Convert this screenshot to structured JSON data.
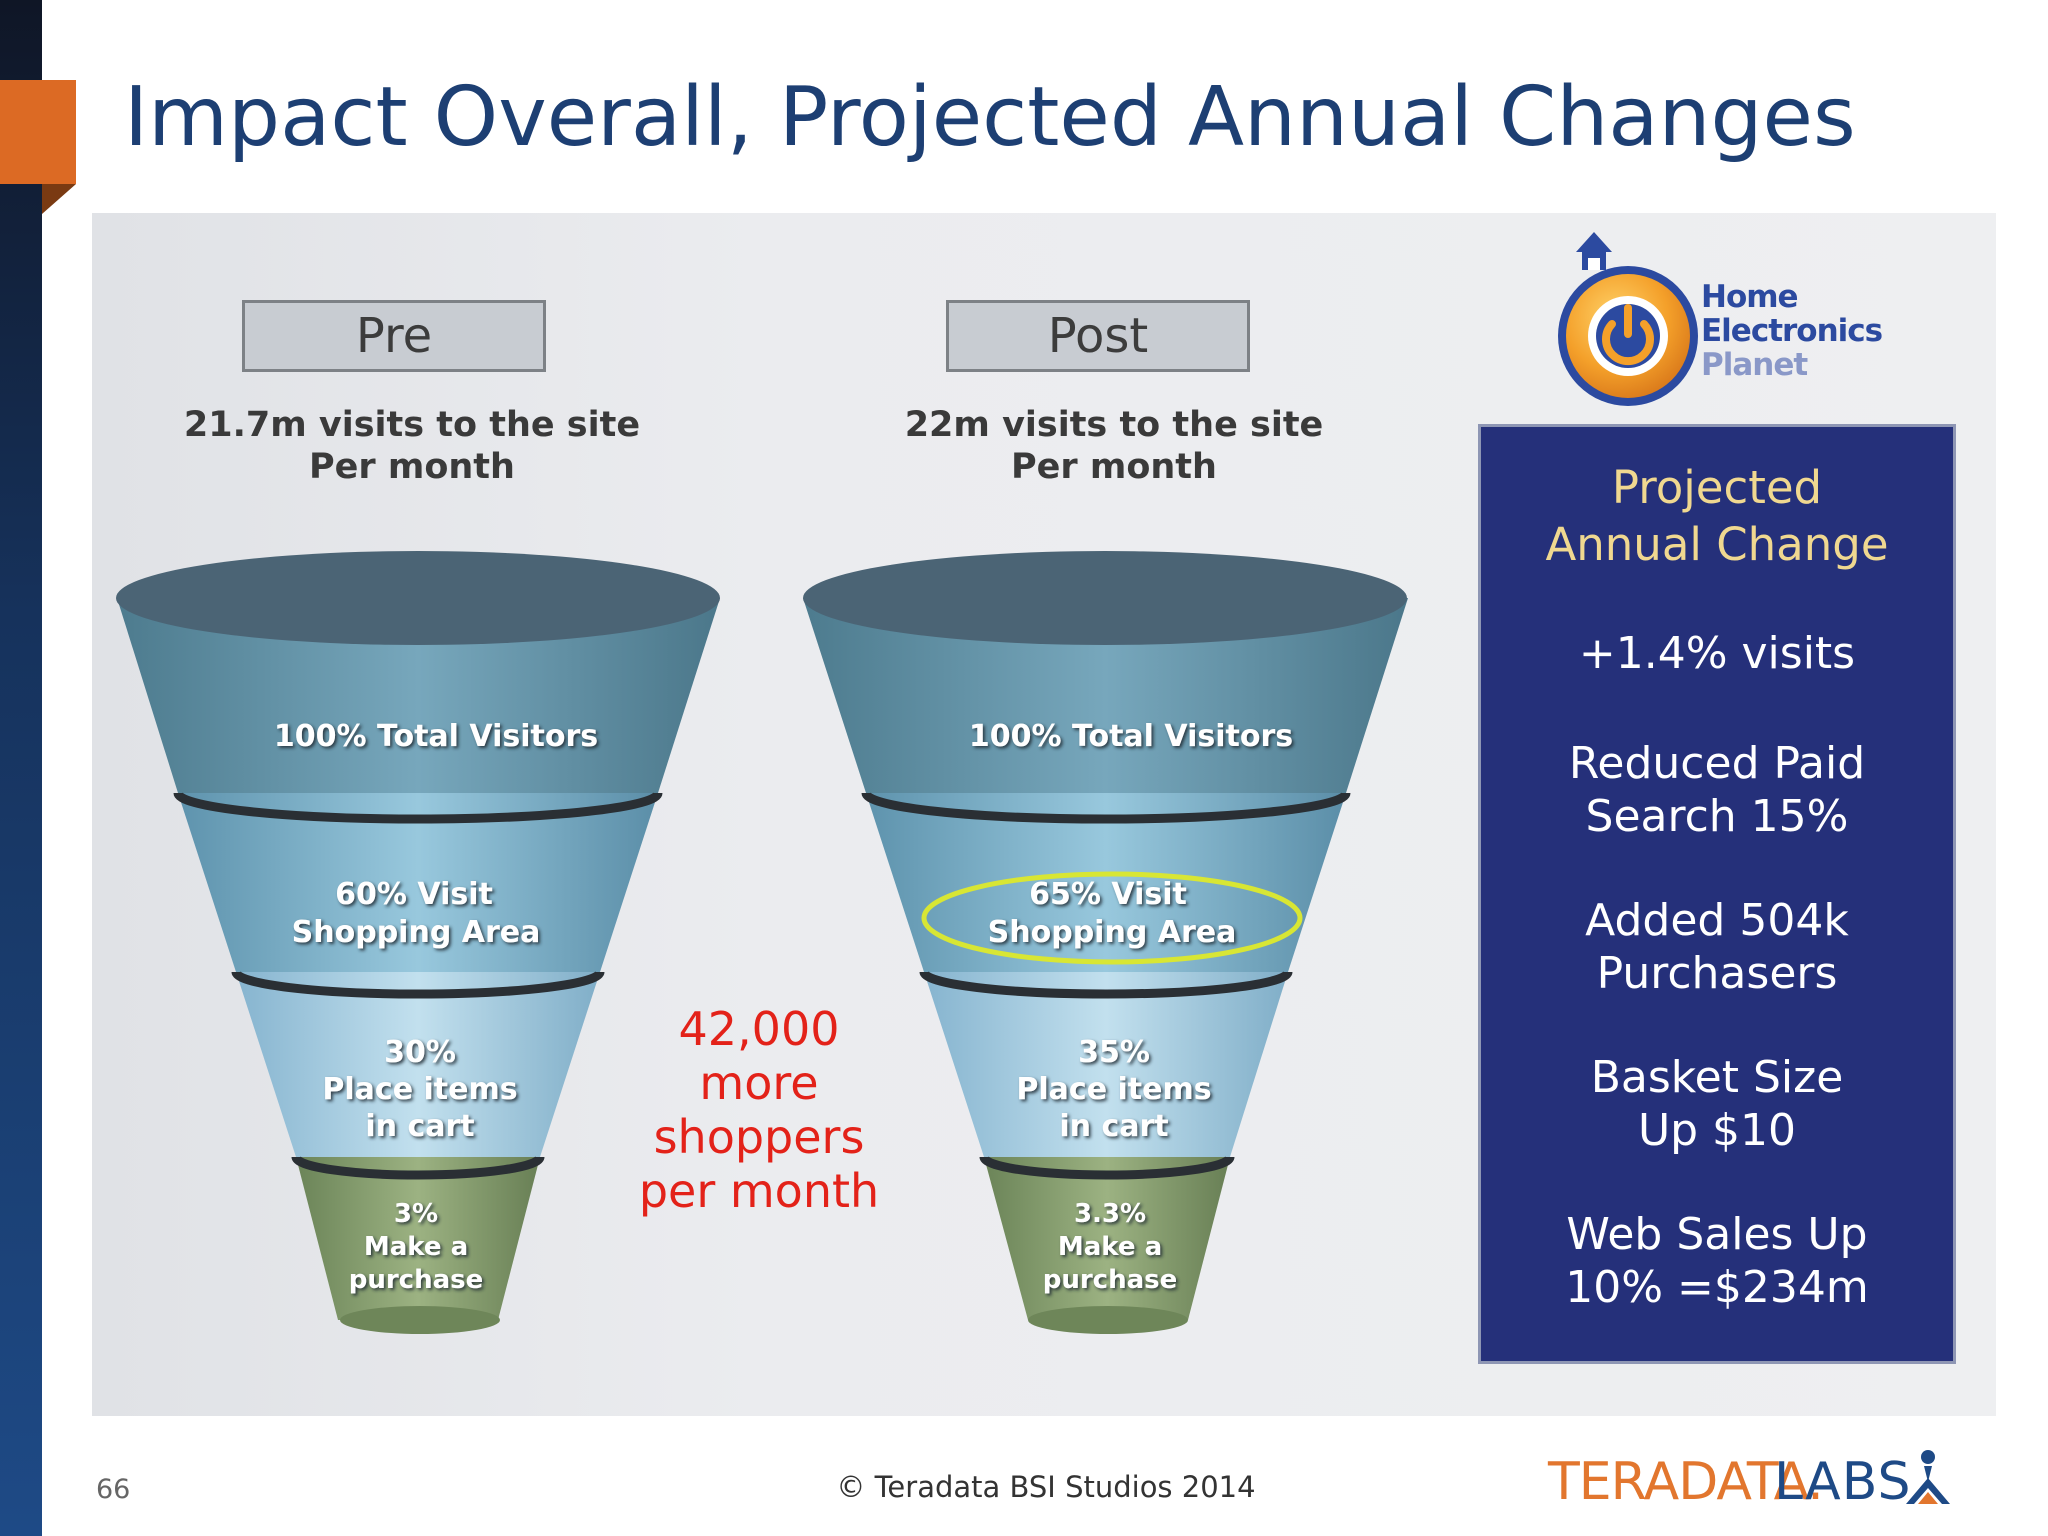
{
  "slide": {
    "title": "Impact Overall, Projected Annual Changes",
    "page_number": "66",
    "copyright": "© Teradata BSI Studios 2014"
  },
  "pre": {
    "label": "Pre",
    "visits_line1": "21.7m visits to the site",
    "visits_line2": "Per month",
    "stage1": "100% Total Visitors",
    "stage2_line1": "60% Visit",
    "stage2_line2": "Shopping Area",
    "stage3_line1": "30%",
    "stage3_line2": "Place items",
    "stage3_line3": "in cart",
    "stage4_line1": "3%",
    "stage4_line2": "Make a",
    "stage4_line3": "purchase"
  },
  "post": {
    "label": "Post",
    "visits_line1": "22m visits to the site",
    "visits_line2": "Per month",
    "stage1": "100% Total Visitors",
    "stage2_line1": "65% Visit",
    "stage2_line2": "Shopping Area",
    "stage3_line1": "35%",
    "stage3_line2": "Place items",
    "stage3_line3": "in cart",
    "stage4_line1": "3.3%",
    "stage4_line2": "Make a",
    "stage4_line3": "purchase"
  },
  "callout": {
    "line1": "42,000",
    "line2": "more",
    "line3": "shoppers",
    "line4": "per month",
    "color": "#e32219"
  },
  "logo": {
    "line1": "Home",
    "line2": "Electronics",
    "line3": "Planet",
    "icon": "power-icon"
  },
  "projected": {
    "heading_line1": "Projected",
    "heading_line2": "Annual Change",
    "items": [
      {
        "line1": "+1.4% visits",
        "line2": ""
      },
      {
        "line1": "Reduced Paid",
        "line2": "Search 15%"
      },
      {
        "line1": "Added 504k",
        "line2": "Purchasers"
      },
      {
        "line1": "Basket Size",
        "line2": "Up $10"
      },
      {
        "line1": "Web Sales Up",
        "line2": "10% =$234m"
      }
    ]
  },
  "brand": {
    "main": "TERADATA.",
    "sub": "LABS"
  },
  "colors": {
    "title": "#1d3f73",
    "accent": "#dc6a24",
    "box_bg": "#25307a",
    "box_heading": "#f0d890",
    "highlight_ring": "#d8e634"
  }
}
